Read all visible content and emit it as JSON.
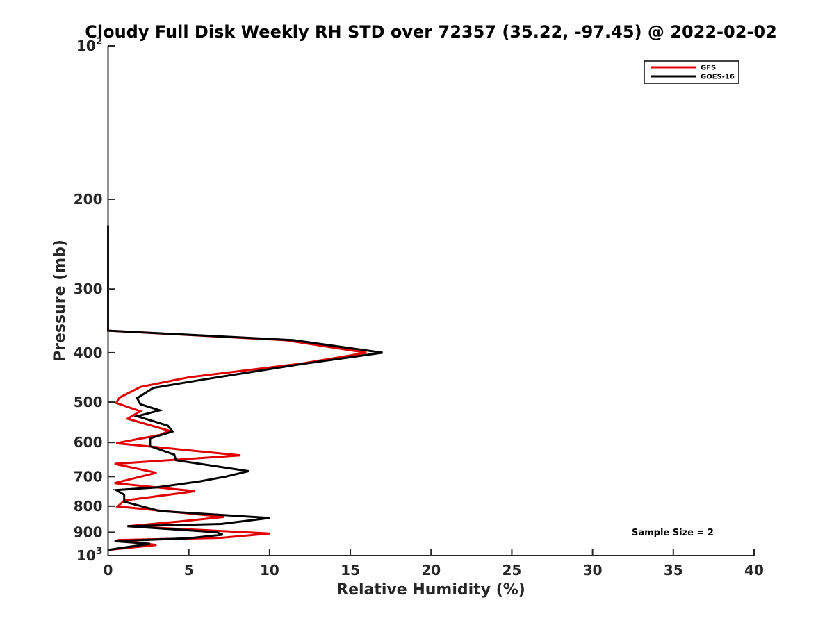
{
  "chart_data": {
    "type": "line",
    "title": "Cloudy Full Disk Weekly RH STD over 72357 (35.22, -97.45) @ 2022-02-02",
    "xlabel": "Relative Humidity (%)",
    "ylabel": "Pressure (mb)",
    "xlim": [
      0,
      40
    ],
    "ylim": [
      100,
      1000
    ],
    "y_scale": "log",
    "y_reversed": true,
    "grid": false,
    "legend_position": "top-right",
    "x_ticks": [
      "0",
      "5",
      "10",
      "15",
      "20",
      "25",
      "30",
      "35",
      "40"
    ],
    "y_ticks": [
      {
        "base": "10",
        "exp": "2",
        "value": 100
      },
      {
        "base": "200",
        "exp": "",
        "value": 200
      },
      {
        "base": "300",
        "exp": "",
        "value": 300
      },
      {
        "base": "400",
        "exp": "",
        "value": 400
      },
      {
        "base": "500",
        "exp": "",
        "value": 500
      },
      {
        "base": "600",
        "exp": "",
        "value": 600
      },
      {
        "base": "700",
        "exp": "",
        "value": 700
      },
      {
        "base": "800",
        "exp": "",
        "value": 800
      },
      {
        "base": "900",
        "exp": "",
        "value": 900
      },
      {
        "base": "10",
        "exp": "3",
        "value": 1000
      }
    ],
    "annotation": "Sample Size = 2",
    "series": [
      {
        "name": "GFS",
        "color": "#e00000",
        "points": [
          [
            0,
            225
          ],
          [
            0,
            350
          ],
          [
            0,
            362
          ],
          [
            11,
            378
          ],
          [
            16,
            400
          ],
          [
            12,
            420
          ],
          [
            5,
            447
          ],
          [
            2,
            467
          ],
          [
            0.7,
            490
          ],
          [
            0.5,
            502
          ],
          [
            2,
            521
          ],
          [
            1.2,
            539
          ],
          [
            3.8,
            569
          ],
          [
            3.2,
            580
          ],
          [
            0.5,
            602
          ],
          [
            8.2,
            636
          ],
          [
            0.4,
            661
          ],
          [
            3,
            688
          ],
          [
            0.4,
            721
          ],
          [
            5.4,
            748
          ],
          [
            1,
            780
          ],
          [
            0.6,
            801
          ],
          [
            7.2,
            840
          ],
          [
            4,
            860
          ],
          [
            1.2,
            876
          ],
          [
            10,
            905
          ],
          [
            7,
            923
          ],
          [
            0.6,
            932
          ],
          [
            3,
            953
          ],
          [
            0,
            975
          ]
        ]
      },
      {
        "name": "GOES-16",
        "color": "#000000",
        "points": [
          [
            0,
            225
          ],
          [
            0,
            350
          ],
          [
            0,
            362
          ],
          [
            11.5,
            378
          ],
          [
            17,
            400
          ],
          [
            12,
            421
          ],
          [
            6,
            451
          ],
          [
            2.8,
            469
          ],
          [
            1.8,
            491
          ],
          [
            2,
            505
          ],
          [
            3.2,
            519
          ],
          [
            1.8,
            533
          ],
          [
            3.7,
            556
          ],
          [
            4,
            571
          ],
          [
            2.6,
            589
          ],
          [
            2.6,
            610
          ],
          [
            4.1,
            634
          ],
          [
            4.2,
            650
          ],
          [
            8.7,
            683
          ],
          [
            7.3,
            700
          ],
          [
            5.7,
            715
          ],
          [
            3,
            735
          ],
          [
            0.5,
            744
          ],
          [
            1,
            760
          ],
          [
            1,
            784
          ],
          [
            3.2,
            818
          ],
          [
            10,
            844
          ],
          [
            7,
            867
          ],
          [
            1.2,
            876
          ],
          [
            6.7,
            900
          ],
          [
            7.1,
            910
          ],
          [
            5,
            925
          ],
          [
            0.4,
            937
          ],
          [
            2.6,
            948
          ],
          [
            0,
            975
          ]
        ]
      }
    ]
  }
}
